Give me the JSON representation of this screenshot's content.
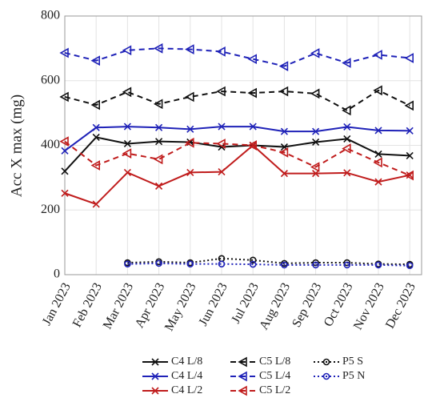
{
  "chart_data": {
    "type": "line",
    "y_label": "Acc X max (mg)",
    "categories": [
      "Jan 2023",
      "Feb 2023",
      "Mar 2023",
      "Apr 2023",
      "May 2023",
      "Jun 2023",
      "Jul 2023",
      "Aug 2023",
      "Sep 2023",
      "Oct 2023",
      "Nov 2023",
      "Dec 2023"
    ],
    "ylim": [
      0,
      800
    ],
    "yticks": [
      0,
      200,
      400,
      600,
      800
    ],
    "grid": true,
    "legend": "bottom",
    "series": [
      {
        "name": "C4 L/8",
        "color": "#111111",
        "dash": "solid",
        "marker": "x",
        "values": [
          320,
          425,
          405,
          412,
          410,
          395,
          400,
          395,
          410,
          420,
          373,
          368
        ]
      },
      {
        "name": "C4 L/4",
        "color": "#1f22b8",
        "dash": "solid",
        "marker": "x",
        "values": [
          383,
          455,
          458,
          455,
          450,
          458,
          458,
          443,
          443,
          457,
          446,
          445
        ]
      },
      {
        "name": "C4 L/2",
        "color": "#c01c1c",
        "dash": "solid",
        "marker": "x",
        "values": [
          252,
          218,
          316,
          274,
          316,
          318,
          400,
          313,
          313,
          315,
          287,
          308
        ]
      },
      {
        "name": "C5 L/8",
        "color": "#111111",
        "dash": "dashed",
        "marker": "triangle-left",
        "values": [
          550,
          525,
          565,
          528,
          550,
          567,
          562,
          567,
          560,
          508,
          570,
          523
        ]
      },
      {
        "name": "C5 L/4",
        "color": "#1f22b8",
        "dash": "dashed",
        "marker": "triangle-left",
        "values": [
          686,
          662,
          694,
          700,
          697,
          690,
          667,
          645,
          685,
          655,
          680,
          670
        ]
      },
      {
        "name": "C5 L/2",
        "color": "#c01c1c",
        "dash": "dashed",
        "marker": "triangle-left",
        "values": [
          412,
          338,
          375,
          357,
          408,
          405,
          400,
          378,
          333,
          390,
          347,
          307
        ]
      },
      {
        "name": "P5 S",
        "color": "#111111",
        "dash": "dotted",
        "marker": "circle",
        "values": [
          null,
          null,
          37,
          40,
          37,
          50,
          45,
          35,
          37,
          37,
          33,
          32
        ]
      },
      {
        "name": "P5 N",
        "color": "#1f22b8",
        "dash": "dotted",
        "marker": "circle",
        "values": [
          null,
          null,
          33,
          35,
          33,
          33,
          32,
          30,
          30,
          30,
          30,
          28
        ]
      }
    ]
  }
}
